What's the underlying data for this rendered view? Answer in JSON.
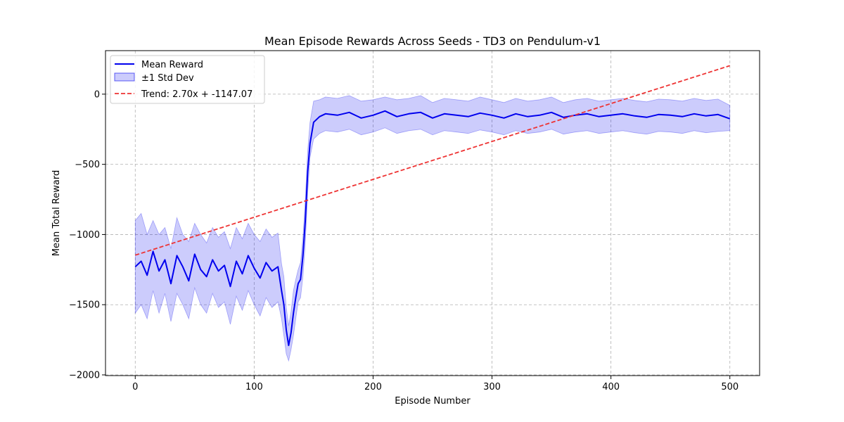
{
  "chart_data": {
    "type": "line",
    "title": "Mean Episode Rewards Across Seeds - TD3 on Pendulum-v1",
    "xlabel": "Episode Number",
    "ylabel": "Mean Total Reward",
    "xlim": [
      -25,
      525
    ],
    "ylim": [
      -2005,
      310
    ],
    "xticks": [
      0,
      100,
      200,
      300,
      400,
      500
    ],
    "yticks": [
      0,
      -500,
      -1000,
      -1500,
      -2000
    ],
    "xtick_labels": [
      "0",
      "100",
      "200",
      "300",
      "400",
      "500"
    ],
    "ytick_labels": [
      "0",
      "−500",
      "−1000",
      "−1500",
      "−2000"
    ],
    "grid": true,
    "legend_position": "top-left",
    "series": [
      {
        "name": "Mean Reward",
        "kind": "line",
        "color": "#0000ee",
        "x": [
          0,
          5,
          10,
          15,
          20,
          25,
          30,
          35,
          40,
          45,
          50,
          55,
          60,
          65,
          70,
          75,
          80,
          85,
          90,
          95,
          100,
          105,
          110,
          115,
          120,
          123,
          125,
          127,
          129,
          131,
          133,
          135,
          137,
          139,
          141,
          143,
          145,
          147,
          150,
          155,
          160,
          170,
          180,
          190,
          200,
          210,
          220,
          230,
          240,
          250,
          260,
          270,
          280,
          290,
          300,
          310,
          320,
          330,
          340,
          350,
          360,
          370,
          380,
          390,
          400,
          410,
          420,
          430,
          440,
          450,
          460,
          470,
          480,
          490,
          500
        ],
        "y": [
          -1230,
          -1190,
          -1290,
          -1120,
          -1260,
          -1180,
          -1350,
          -1150,
          -1230,
          -1330,
          -1140,
          -1250,
          -1300,
          -1180,
          -1260,
          -1220,
          -1370,
          -1190,
          -1280,
          -1150,
          -1240,
          -1310,
          -1200,
          -1260,
          -1230,
          -1400,
          -1500,
          -1680,
          -1790,
          -1700,
          -1560,
          -1450,
          -1350,
          -1320,
          -1150,
          -900,
          -550,
          -350,
          -200,
          -160,
          -140,
          -150,
          -130,
          -170,
          -150,
          -120,
          -160,
          -140,
          -130,
          -170,
          -140,
          -150,
          -160,
          -135,
          -150,
          -170,
          -140,
          -160,
          -150,
          -130,
          -165,
          -150,
          -140,
          -160,
          -150,
          -140,
          -155,
          -165,
          -145,
          -150,
          -160,
          -140,
          -155,
          -145,
          -175
        ]
      },
      {
        "name": "±1 Std Dev",
        "kind": "band",
        "color": "#0000ee",
        "x": [
          0,
          5,
          10,
          15,
          20,
          25,
          30,
          35,
          40,
          45,
          50,
          55,
          60,
          65,
          70,
          75,
          80,
          85,
          90,
          95,
          100,
          105,
          110,
          115,
          120,
          123,
          125,
          127,
          129,
          131,
          133,
          135,
          137,
          139,
          141,
          143,
          145,
          147,
          150,
          155,
          160,
          170,
          180,
          190,
          200,
          210,
          220,
          230,
          240,
          250,
          260,
          270,
          280,
          290,
          300,
          310,
          320,
          330,
          340,
          350,
          360,
          370,
          380,
          390,
          400,
          410,
          420,
          430,
          440,
          450,
          460,
          470,
          480,
          490,
          500
        ],
        "upper": [
          -900,
          -850,
          -1000,
          -900,
          -1000,
          -950,
          -1100,
          -880,
          -1000,
          -1050,
          -920,
          -1000,
          -1060,
          -950,
          -1020,
          -980,
          -1100,
          -950,
          -1030,
          -920,
          -1000,
          -1050,
          -960,
          -1020,
          -990,
          -1210,
          -1300,
          -1520,
          -1650,
          -1550,
          -1400,
          -1320,
          -1250,
          -1200,
          -1020,
          -750,
          -400,
          -200,
          -50,
          -40,
          -20,
          -30,
          -10,
          -50,
          -40,
          -20,
          -40,
          -30,
          -10,
          -60,
          -30,
          -40,
          -50,
          -20,
          -40,
          -60,
          -30,
          -50,
          -40,
          -20,
          -60,
          -40,
          -30,
          -50,
          -40,
          -30,
          -45,
          -55,
          -35,
          -40,
          -50,
          -30,
          -45,
          -35,
          -80
        ],
        "lower": [
          -1560,
          -1500,
          -1600,
          -1400,
          -1560,
          -1420,
          -1620,
          -1420,
          -1500,
          -1600,
          -1380,
          -1500,
          -1560,
          -1420,
          -1520,
          -1480,
          -1640,
          -1440,
          -1540,
          -1400,
          -1500,
          -1580,
          -1450,
          -1520,
          -1480,
          -1600,
          -1720,
          -1850,
          -1900,
          -1820,
          -1720,
          -1600,
          -1480,
          -1450,
          -1300,
          -1060,
          -700,
          -450,
          -320,
          -280,
          -260,
          -270,
          -250,
          -290,
          -270,
          -240,
          -280,
          -260,
          -250,
          -290,
          -260,
          -270,
          -280,
          -255,
          -270,
          -290,
          -260,
          -280,
          -270,
          -250,
          -285,
          -270,
          -260,
          -280,
          -270,
          -260,
          -275,
          -285,
          -265,
          -270,
          -280,
          -260,
          -275,
          -265,
          -260
        ]
      },
      {
        "name": "Trend: 2.70x + -1147.07",
        "kind": "trend",
        "color": "#ee3333",
        "slope": 2.7,
        "intercept": -1147.07,
        "x": [
          0,
          500
        ]
      }
    ]
  }
}
